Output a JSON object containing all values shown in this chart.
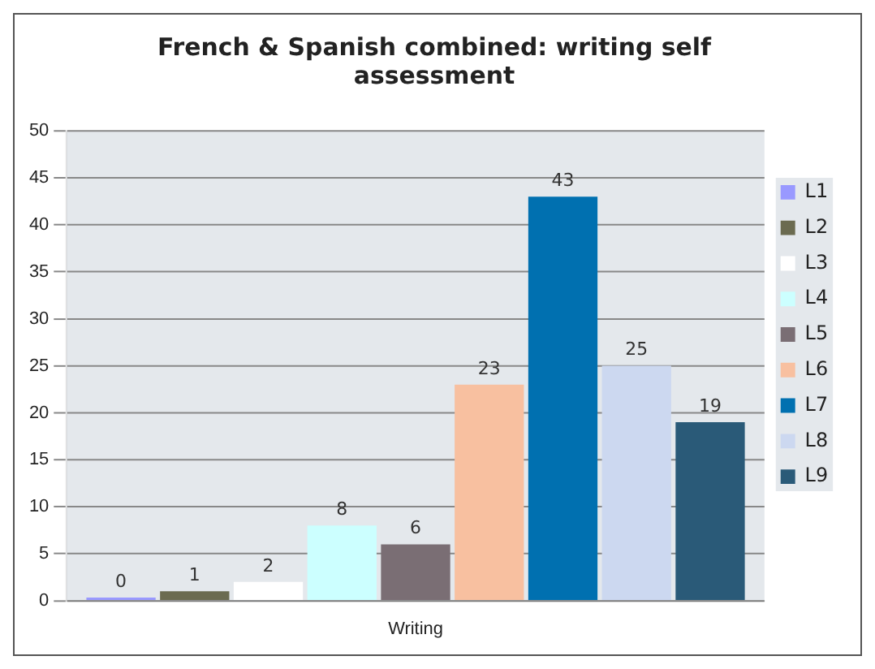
{
  "chart_data": {
    "type": "bar",
    "title": "French & Spanish combined: writing self assessment",
    "categories": [
      "Writing"
    ],
    "series": [
      {
        "name": "L1",
        "color": "#9999ff",
        "values": [
          0
        ]
      },
      {
        "name": "L2",
        "color": "#6b6b50",
        "values": [
          1
        ]
      },
      {
        "name": "L3",
        "color": "#ffffff",
        "values": [
          2
        ]
      },
      {
        "name": "L4",
        "color": "#ccffff",
        "values": [
          8
        ]
      },
      {
        "name": "L5",
        "color": "#7a6e74",
        "values": [
          6
        ]
      },
      {
        "name": "L6",
        "color": "#f8c0a0",
        "values": [
          23
        ]
      },
      {
        "name": "L7",
        "color": "#0070b0",
        "values": [
          43
        ]
      },
      {
        "name": "L8",
        "color": "#ccd8f0",
        "values": [
          25
        ]
      },
      {
        "name": "L9",
        "color": "#2a5a78",
        "values": [
          19
        ]
      }
    ],
    "ylim": [
      0,
      50
    ],
    "yticks": [
      0,
      5,
      10,
      15,
      20,
      25,
      30,
      35,
      40,
      45,
      50
    ],
    "grid": "y",
    "legend": "right",
    "data_labels": true
  }
}
